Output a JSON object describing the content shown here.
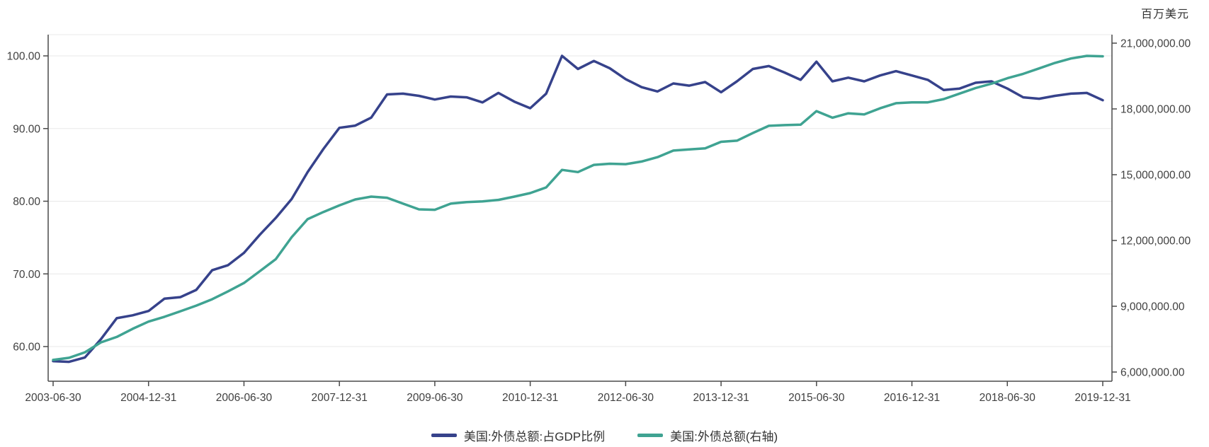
{
  "unit_label": "百万美元",
  "legend": [
    {
      "label": "美国:外债总额:占GDP比例",
      "color": "#36428b"
    },
    {
      "label": "美国:外债总额(右轴)",
      "color": "#3fa392"
    }
  ],
  "chart_data": {
    "type": "line",
    "title": "",
    "unit_right": "百万美元",
    "grid": true,
    "legend_position": "bottom",
    "colors": {
      "axis": "#4a4a4a",
      "grid": "#e8e8e8",
      "text": "#404040"
    },
    "x": [
      "2003-06-30",
      "2003-09-30",
      "2003-12-31",
      "2004-03-31",
      "2004-06-30",
      "2004-09-30",
      "2004-12-31",
      "2005-03-31",
      "2005-06-30",
      "2005-09-30",
      "2005-12-31",
      "2006-03-31",
      "2006-06-30",
      "2006-09-30",
      "2006-12-31",
      "2007-03-31",
      "2007-06-30",
      "2007-09-30",
      "2007-12-31",
      "2008-03-31",
      "2008-06-30",
      "2008-09-30",
      "2008-12-31",
      "2009-03-31",
      "2009-06-30",
      "2009-09-30",
      "2009-12-31",
      "2010-03-31",
      "2010-06-30",
      "2010-09-30",
      "2010-12-31",
      "2011-03-31",
      "2011-06-30",
      "2011-09-30",
      "2011-12-31",
      "2012-03-31",
      "2012-06-30",
      "2012-09-30",
      "2012-12-31",
      "2013-03-31",
      "2013-06-30",
      "2013-09-30",
      "2013-12-31",
      "2014-03-31",
      "2014-06-30",
      "2014-09-30",
      "2014-12-31",
      "2015-03-31",
      "2015-06-30",
      "2015-09-30",
      "2015-12-31",
      "2016-03-31",
      "2016-06-30",
      "2016-09-30",
      "2016-12-31",
      "2017-03-31",
      "2017-06-30",
      "2017-09-30",
      "2017-12-31",
      "2018-03-31",
      "2018-06-30",
      "2018-09-30",
      "2018-12-31",
      "2019-03-31",
      "2019-06-30",
      "2019-09-30",
      "2019-12-31"
    ],
    "x_tick_labels": [
      "2003-06-30",
      "2004-12-31",
      "2006-06-30",
      "2007-12-31",
      "2009-06-30",
      "2010-12-31",
      "2012-06-30",
      "2013-12-31",
      "2015-06-30",
      "2016-12-31",
      "2018-06-30",
      "2019-12-31"
    ],
    "series": [
      {
        "id": "gdp-ratio",
        "name": "美国:外债总额:占GDP比例",
        "axis": "left",
        "color": "#36428b",
        "values": [
          58.0,
          57.9,
          58.5,
          61.0,
          63.9,
          64.3,
          64.9,
          66.6,
          66.8,
          67.8,
          70.5,
          71.2,
          72.9,
          75.4,
          77.7,
          80.3,
          84.0,
          87.2,
          90.1,
          90.4,
          91.5,
          94.7,
          94.8,
          94.5,
          94.0,
          94.4,
          94.3,
          93.6,
          94.9,
          93.7,
          92.8,
          94.8,
          100.0,
          98.2,
          99.3,
          98.3,
          96.8,
          95.7,
          95.1,
          96.2,
          95.9,
          96.4,
          95.0,
          96.5,
          98.2,
          98.6,
          97.7,
          96.7,
          99.2,
          96.5,
          97.0,
          96.5,
          97.3,
          97.9,
          97.3,
          96.7,
          95.3,
          95.5,
          96.3,
          96.5,
          95.5,
          94.3,
          94.1,
          94.5,
          94.8,
          94.9,
          93.9
        ]
      },
      {
        "id": "total-debt",
        "name": "美国:外债总额(右轴)",
        "axis": "right",
        "color": "#3fa392",
        "values": [
          6550000,
          6650000,
          6900000,
          7350000,
          7600000,
          7970000,
          8300000,
          8520000,
          8770000,
          9030000,
          9320000,
          9680000,
          10060000,
          10600000,
          11150000,
          12150000,
          12970000,
          13300000,
          13600000,
          13870000,
          14000000,
          13950000,
          13680000,
          13420000,
          13400000,
          13680000,
          13750000,
          13780000,
          13850000,
          14000000,
          14160000,
          14420000,
          15220000,
          15120000,
          15450000,
          15500000,
          15480000,
          15600000,
          15800000,
          16100000,
          16150000,
          16200000,
          16500000,
          16550000,
          16900000,
          17230000,
          17260000,
          17280000,
          17900000,
          17600000,
          17800000,
          17750000,
          18030000,
          18260000,
          18300000,
          18300000,
          18450000,
          18700000,
          18950000,
          19150000,
          19400000,
          19600000,
          19850000,
          20100000,
          20300000,
          20420000,
          20400000
        ]
      }
    ],
    "y_left": {
      "ticks": [
        100,
        90,
        80,
        70,
        60
      ],
      "tick_labels": [
        "100.00",
        "90.00",
        "80.00",
        "70.00",
        "60.00"
      ],
      "range": [
        55.2,
        102.9
      ]
    },
    "y_right": {
      "ticks": [
        21000000,
        18000000,
        15000000,
        12000000,
        9000000,
        6000000
      ],
      "tick_labels": [
        "21,000,000.00",
        "18,000,000.00",
        "15,000,000.00",
        "12,000,000.00",
        "9,000,000.00",
        "6,000,000.00"
      ],
      "range": [
        5580000,
        21390000
      ]
    }
  }
}
